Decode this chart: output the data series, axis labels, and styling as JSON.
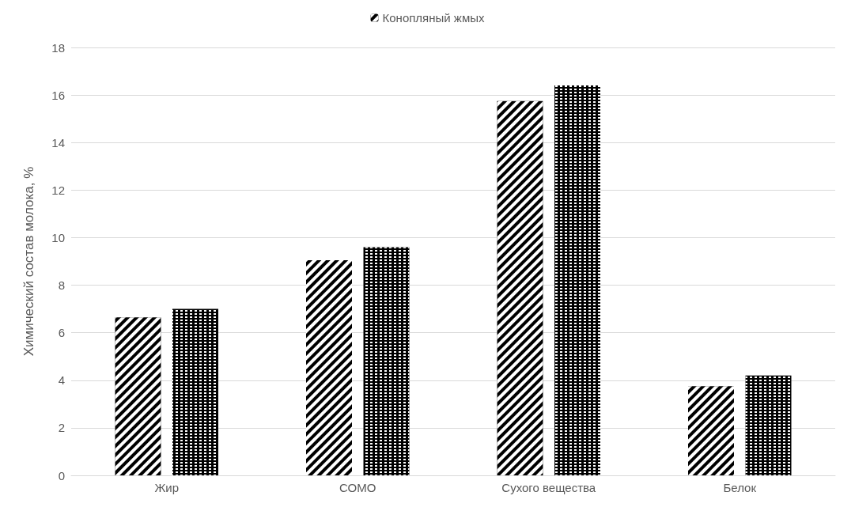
{
  "chart_data": {
    "type": "bar",
    "ylabel": "Химический состав молока, %",
    "categories": [
      "Жир",
      "СОМО",
      "Сухого вещества",
      "Белок"
    ],
    "series": [
      {
        "name": "Конопляный жмых",
        "color": "#000000",
        "values": [
          6.65,
          9.05,
          15.75,
          3.75
        ]
      },
      {
        "color": "#000000",
        "values": [
          7.0,
          9.6,
          16.4,
          4.2
        ]
      }
    ],
    "ylim": [
      0,
      18
    ],
    "yticks": [
      0,
      2,
      4,
      6,
      8,
      10,
      12,
      14,
      16,
      18
    ],
    "grid": "y",
    "legend": "top"
  }
}
